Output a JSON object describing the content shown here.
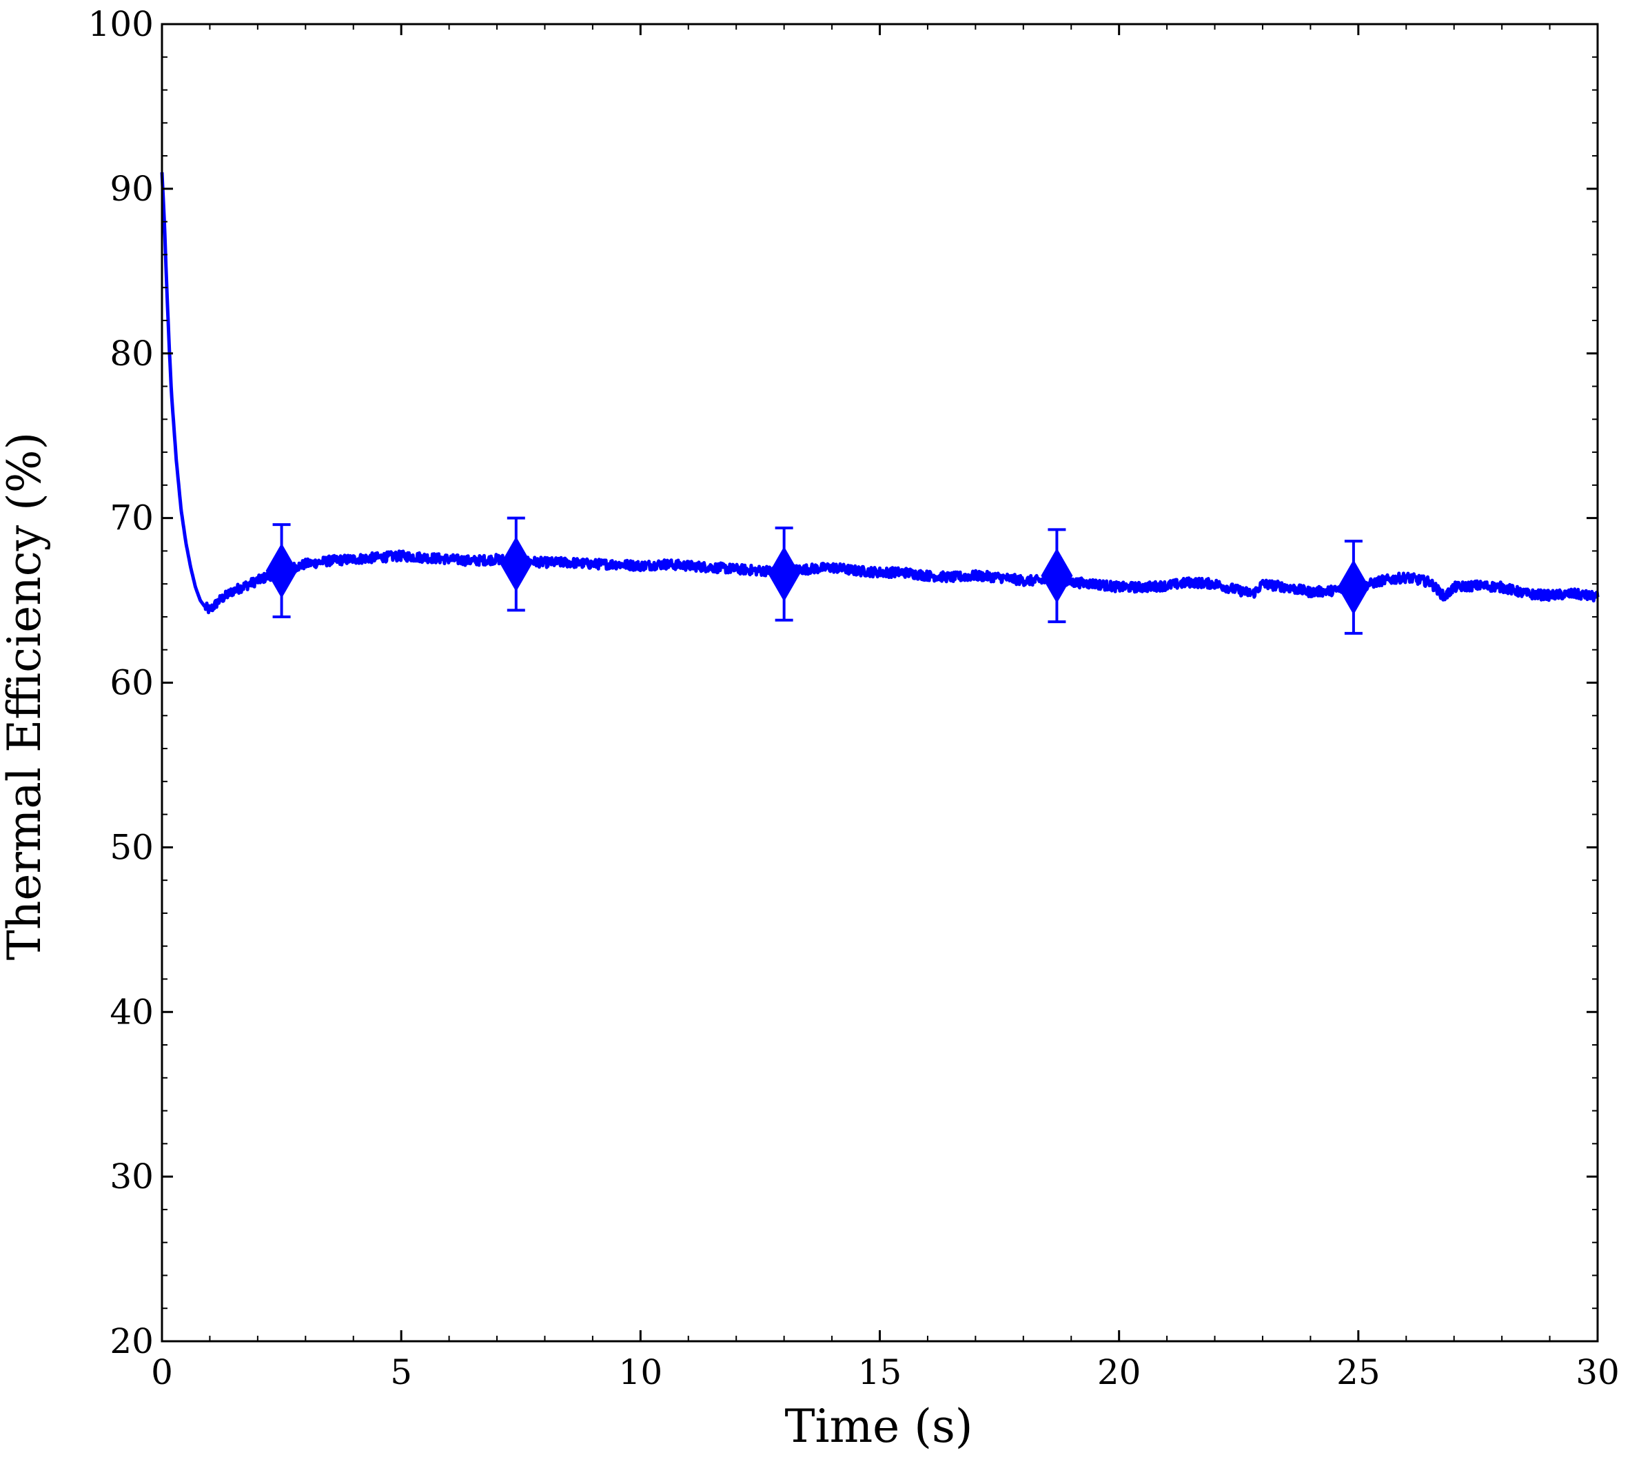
{
  "chart_data": {
    "type": "line",
    "title": "",
    "xlabel": "Time (s)",
    "ylabel": "Thermal Efficiency (%)",
    "xlim": [
      0,
      30
    ],
    "ylim": [
      20,
      100
    ],
    "x_ticks": [
      "0",
      "5",
      "10",
      "15",
      "20",
      "25",
      "30"
    ],
    "y_ticks": [
      "20",
      "30",
      "40",
      "50",
      "60",
      "70",
      "80",
      "90",
      "100"
    ],
    "x_minor_step": 1,
    "y_minor_step": 2,
    "grid": false,
    "legend": "none",
    "series": [
      {
        "line_x": [
          0,
          0.05,
          0.1,
          0.15,
          0.2,
          0.3,
          0.4,
          0.5,
          0.6,
          0.7,
          0.8,
          0.9,
          1.0,
          1.2,
          1.5,
          2.0,
          2.5,
          3.0,
          3.5,
          4.0,
          4.5,
          5.0,
          5.5,
          6.0,
          6.5,
          7.0,
          7.5,
          8.0,
          8.5,
          9.0,
          9.5,
          10.0,
          10.5,
          11.0,
          11.5,
          12.0,
          12.5,
          13.0,
          13.5,
          14.0,
          14.5,
          15.0,
          15.5,
          16.0,
          16.5,
          17.0,
          17.5,
          18.0,
          18.5,
          19.0,
          19.5,
          20.0,
          20.5,
          21.0,
          21.5,
          22.0,
          22.5,
          22.8,
          23.0,
          23.5,
          24.0,
          24.5,
          25.0,
          25.5,
          26.0,
          26.5,
          26.8,
          27.0,
          27.5,
          28.0,
          28.5,
          29.0,
          29.5,
          30.0
        ],
        "line_y": [
          91,
          88,
          84,
          80.5,
          77.5,
          73.5,
          70.5,
          68.5,
          67,
          65.8,
          65.0,
          64.6,
          64.4,
          65.0,
          65.6,
          66.2,
          66.8,
          67.2,
          67.4,
          67.5,
          67.6,
          67.7,
          67.6,
          67.5,
          67.4,
          67.5,
          67.4,
          67.3,
          67.3,
          67.2,
          67.2,
          67.1,
          67.2,
          67.1,
          67.0,
          66.9,
          66.8,
          66.8,
          66.9,
          67.0,
          66.8,
          66.7,
          66.7,
          66.5,
          66.4,
          66.5,
          66.4,
          66.2,
          66.2,
          66.1,
          66.0,
          65.8,
          65.8,
          65.9,
          66.1,
          66.0,
          65.6,
          65.4,
          66.0,
          65.8,
          65.5,
          65.6,
          65.8,
          66.2,
          66.4,
          66.1,
          65.2,
          65.8,
          65.9,
          65.8,
          65.4,
          65.3,
          65.4,
          65.2
        ],
        "noise_amplitude": 0.3,
        "markers": [
          {
            "x": 2.5,
            "y": 66.8,
            "yerr": 2.8
          },
          {
            "x": 7.4,
            "y": 67.2,
            "yerr": 2.8
          },
          {
            "x": 13.0,
            "y": 66.6,
            "yerr": 2.8
          },
          {
            "x": 18.7,
            "y": 66.5,
            "yerr": 2.8
          },
          {
            "x": 24.9,
            "y": 65.8,
            "yerr": 2.8
          }
        ],
        "marker_shape": "diamond",
        "color": "#0000ff"
      }
    ]
  }
}
